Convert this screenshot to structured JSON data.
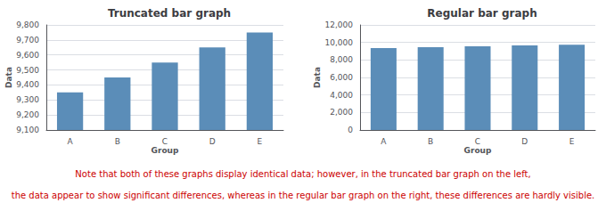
{
  "chart_data": [
    {
      "type": "bar",
      "title": "Truncated bar graph",
      "xlabel": "Group",
      "ylabel": "Data",
      "categories": [
        "A",
        "B",
        "C",
        "D",
        "E"
      ],
      "values": [
        9350,
        9450,
        9550,
        9650,
        9750
      ],
      "color": "#5B8DB8",
      "ylim": [
        9100,
        9800
      ],
      "yticks": [
        9100,
        9200,
        9300,
        9400,
        9500,
        9600,
        9700,
        9800
      ],
      "grid": true
    },
    {
      "type": "bar",
      "title": "Regular bar graph",
      "xlabel": "Group",
      "ylabel": "Data",
      "categories": [
        "A",
        "B",
        "C",
        "D",
        "E"
      ],
      "values": [
        9350,
        9450,
        9550,
        9650,
        9750
      ],
      "color": "#5B8DB8",
      "ylim": [
        0,
        12000
      ],
      "yticks": [
        0,
        2000,
        4000,
        6000,
        8000,
        10000,
        12000
      ],
      "grid": true
    }
  ],
  "annotations": [
    {
      "text": "Note that both of these graphs display identical data; however, in the truncated bar graph on the left,",
      "color": "#CC0000"
    },
    {
      "text": "the data appear to show significant differences, whereas in the regular bar graph on the right, these differences are hardly visible.",
      "color": "#CC0000"
    }
  ]
}
